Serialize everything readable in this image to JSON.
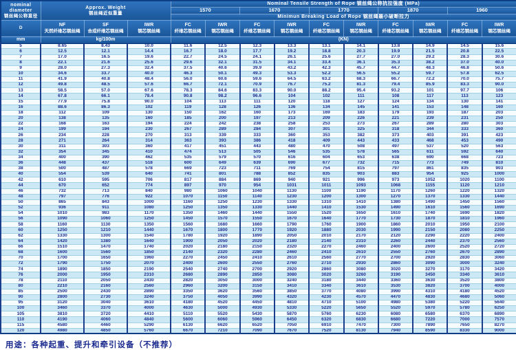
{
  "colors": {
    "header_blue": "#2268b0",
    "grid_navy": "#1b3e8c",
    "row_stripe": "#cde8f5",
    "text_navy": "#1b2b8f"
  },
  "table": {
    "corner": {
      "en": "nominal diameter",
      "zh": "钢丝绳公称直径"
    },
    "weight_header": {
      "en": "Approx. Weight",
      "zh": "钢丝绳近似重量"
    },
    "tensile_title": "Nominal  Tensile  Strength  of  Rope  钢丝绳公称抗拉强度  (MPa)",
    "strengths": [
      "1570",
      "1670",
      "1770",
      "1870",
      "1960"
    ],
    "breaking_title": "Minimun  Breaking  Load  of  Rope  钢丝绳最小破断拉力",
    "col_d": "D",
    "weight_cols": [
      {
        "code": "NF",
        "zh": "天然纤维芯钢丝绳"
      },
      {
        "code": "SF",
        "zh": "合成纤维芯钢丝绳"
      },
      {
        "code": "IWR",
        "zh": "钢芯钢丝绳"
      }
    ],
    "load_cols": [
      {
        "code": "FC",
        "zh": "纤维芯钢丝绳"
      },
      {
        "code": "IWR",
        "zh": "钢芯钢丝绳"
      }
    ],
    "units": {
      "d": "mm",
      "weight": "kg/100m",
      "load": "(KN)"
    },
    "rows": [
      [
        "5",
        "8.65",
        "8.43",
        "10.0",
        "11.6",
        "12.5",
        "12.3",
        "13.3",
        "13.1",
        "14.1",
        "13.8",
        "14.9",
        "14.5",
        "15.6"
      ],
      [
        "6",
        "12.5",
        "12.1",
        "14.4",
        "16.7",
        "18.0",
        "17.7",
        "19.2",
        "18.8",
        "20.3",
        "19.9",
        "21.5",
        "20.8",
        "22.5"
      ],
      [
        "7",
        "17.0",
        "16.5",
        "19.6",
        "22.7",
        "24.5",
        "24.1",
        "26.1",
        "25.6",
        "27.7",
        "27.0",
        "29.2",
        "28.3",
        "30.6"
      ],
      [
        "8",
        "22.1",
        "21.6",
        "25.6",
        "29.6",
        "32.1",
        "31.5",
        "34.1",
        "33.4",
        "36.1",
        "35.3",
        "38.2",
        "37.0",
        "40.0"
      ],
      [
        "9",
        "28.0",
        "27.3",
        "32.4",
        "37.5",
        "40.6",
        "39.9",
        "43.2",
        "42.3",
        "45.7",
        "44.7",
        "48.3",
        "46.8",
        "50.6"
      ],
      [
        "10",
        "34.6",
        "33.7",
        "40.0",
        "46.3",
        "50.1",
        "49.3",
        "53.3",
        "52.2",
        "56.5",
        "55.2",
        "59.7",
        "57.8",
        "62.5"
      ],
      [
        "11",
        "41.9",
        "40.8",
        "48.4",
        "56.0",
        "60.6",
        "59.6",
        "64.5",
        "63.2",
        "68.3",
        "66.7",
        "72.2",
        "70.0",
        "75.7"
      ],
      [
        "12",
        "49.8",
        "48.5",
        "57.6",
        "66.7",
        "72.1",
        "70.9",
        "76.7",
        "75.2",
        "81.3",
        "79.4",
        "85.9",
        "83.3",
        "90.0"
      ],
      [
        "13",
        "58.5",
        "57.0",
        "67.6",
        "78.3",
        "84.6",
        "83.3",
        "90.0",
        "88.2",
        "95.4",
        "93.2",
        "101",
        "97.7",
        "106"
      ],
      [
        "14",
        "67.8",
        "66.1",
        "78.4",
        "90.8",
        "98.2",
        "96.6",
        "104",
        "102",
        "111",
        "108",
        "117",
        "113",
        "123"
      ],
      [
        "15",
        "77.9",
        "75.8",
        "90.0",
        "104",
        "113",
        "111",
        "120",
        "118",
        "127",
        "124",
        "134",
        "130",
        "141"
      ],
      [
        "16",
        "88.6",
        "86.3",
        "102",
        "119",
        "128",
        "126",
        "136",
        "134",
        "145",
        "141",
        "153",
        "148",
        "160"
      ],
      [
        "18",
        "112",
        "109",
        "130",
        "150",
        "162",
        "160",
        "173",
        "169",
        "183",
        "179",
        "193",
        "187",
        "203"
      ],
      [
        "20",
        "138",
        "135",
        "160",
        "185",
        "200",
        "197",
        "213",
        "209",
        "226",
        "221",
        "239",
        "231",
        "250"
      ],
      [
        "22",
        "168",
        "163",
        "194",
        "224",
        "242",
        "238",
        "258",
        "253",
        "273",
        "267",
        "289",
        "280",
        "303"
      ],
      [
        "24",
        "199",
        "194",
        "230",
        "267",
        "289",
        "284",
        "307",
        "301",
        "325",
        "318",
        "344",
        "333",
        "360"
      ],
      [
        "26",
        "234",
        "228",
        "270",
        "313",
        "339",
        "333",
        "360",
        "353",
        "382",
        "373",
        "403",
        "391",
        "423"
      ],
      [
        "28",
        "271",
        "264",
        "314",
        "363",
        "393",
        "386",
        "418",
        "409",
        "443",
        "433",
        "468",
        "453",
        "490"
      ],
      [
        "30",
        "311",
        "303",
        "360",
        "417",
        "451",
        "443",
        "480",
        "470",
        "508",
        "497",
        "537",
        "520",
        "563"
      ],
      [
        "32",
        "354",
        "345",
        "410",
        "474",
        "513",
        "505",
        "546",
        "535",
        "578",
        "565",
        "611",
        "592",
        "640"
      ],
      [
        "34",
        "400",
        "390",
        "462",
        "535",
        "579",
        "570",
        "616",
        "604",
        "653",
        "638",
        "690",
        "668",
        "723"
      ],
      [
        "36",
        "448",
        "437",
        "518",
        "600",
        "649",
        "639",
        "690",
        "677",
        "732",
        "715",
        "773",
        "749",
        "810"
      ],
      [
        "38",
        "500",
        "487",
        "578",
        "669",
        "723",
        "711",
        "769",
        "754",
        "815",
        "797",
        "861",
        "835",
        "903"
      ],
      [
        "40",
        "554",
        "539",
        "640",
        "741",
        "801",
        "788",
        "852",
        "835",
        "903",
        "883",
        "954",
        "925",
        "1000"
      ],
      [
        "42",
        "610",
        "595",
        "706",
        "817",
        "884",
        "869",
        "940",
        "921",
        "996",
        "973",
        "1052",
        "1020",
        "1100"
      ],
      [
        "44",
        "670",
        "652",
        "774",
        "897",
        "970",
        "954",
        "1031",
        "1011",
        "1093",
        "1068",
        "1155",
        "1120",
        "1210"
      ],
      [
        "46",
        "732",
        "713",
        "840",
        "980",
        "1060",
        "1040",
        "1130",
        "1100",
        "1190",
        "1170",
        "1260",
        "1220",
        "1320"
      ],
      [
        "48",
        "797",
        "776",
        "922",
        "1070",
        "1150",
        "1140",
        "1230",
        "1200",
        "1300",
        "1270",
        "1370",
        "1330",
        "1440"
      ],
      [
        "50",
        "865",
        "843",
        "1000",
        "1160",
        "1250",
        "1230",
        "1330",
        "1310",
        "1410",
        "1380",
        "1490",
        "1450",
        "1560"
      ],
      [
        "52",
        "936",
        "911",
        "1080",
        "1250",
        "1350",
        "1330",
        "1440",
        "1410",
        "1530",
        "1490",
        "1610",
        "1560",
        "1690"
      ],
      [
        "54",
        "1010",
        "983",
        "1170",
        "1350",
        "1460",
        "1440",
        "1550",
        "1520",
        "1650",
        "1610",
        "1740",
        "1690",
        "1820"
      ],
      [
        "56",
        "1090",
        "1060",
        "1250",
        "1450",
        "1570",
        "1550",
        "1670",
        "1640",
        "1770",
        "1730",
        "1870",
        "1810",
        "1960"
      ],
      [
        "58",
        "1160",
        "1130",
        "1350",
        "1560",
        "1680",
        "1660",
        "1790",
        "1760",
        "1900",
        "1860",
        "2010",
        "1950",
        "2100"
      ],
      [
        "60",
        "1250",
        "1210",
        "1440",
        "1670",
        "1800",
        "1770",
        "1920",
        "1880",
        "2030",
        "1990",
        "2150",
        "2080",
        "2250"
      ],
      [
        "62",
        "1330",
        "1300",
        "1540",
        "1780",
        "1920",
        "1890",
        "2050",
        "2010",
        "2170",
        "2120",
        "2290",
        "2220",
        "2400"
      ],
      [
        "64",
        "1420",
        "1380",
        "1640",
        "1900",
        "2050",
        "2020",
        "2180",
        "2140",
        "2310",
        "2260",
        "2440",
        "2370",
        "2560"
      ],
      [
        "66",
        "1510",
        "1470",
        "1740",
        "2020",
        "2180",
        "2150",
        "2320",
        "2270",
        "2460",
        "2400",
        "2600",
        "2520",
        "2720"
      ],
      [
        "68",
        "1600",
        "1560",
        "1850",
        "2140",
        "2320",
        "2280",
        "2460",
        "2410",
        "2610",
        "2550",
        "2760",
        "2670",
        "2890"
      ],
      [
        "70",
        "1700",
        "1650",
        "1960",
        "2270",
        "2450",
        "2410",
        "2610",
        "2560",
        "2770",
        "2700",
        "2920",
        "2830",
        "3060"
      ],
      [
        "72",
        "1790",
        "1750",
        "2070",
        "2400",
        "2600",
        "2550",
        "2760",
        "2710",
        "2930",
        "2860",
        "3090",
        "3000",
        "3240"
      ],
      [
        "74",
        "1890",
        "1850",
        "2190",
        "2540",
        "2740",
        "2700",
        "2920",
        "2860",
        "3080",
        "3020",
        "3270",
        "3170",
        "3420"
      ],
      [
        "76",
        "2000",
        "1950",
        "2310",
        "2680",
        "2890",
        "2850",
        "3080",
        "3020",
        "3260",
        "3190",
        "3450",
        "3340",
        "3610"
      ],
      [
        "78",
        "2110",
        "2050",
        "2430",
        "2820",
        "3050",
        "3000",
        "3240",
        "3180",
        "3440",
        "3360",
        "3630",
        "3520",
        "3800"
      ],
      [
        "80",
        "2210",
        "2160",
        "2560",
        "2960",
        "3200",
        "3150",
        "3410",
        "3340",
        "3610",
        "3530",
        "3820",
        "3700",
        "4000"
      ],
      [
        "85",
        "2500",
        "2430",
        "2890",
        "3350",
        "3620",
        "3560",
        "3850",
        "3770",
        "4080",
        "3990",
        "4310",
        "4180",
        "4520"
      ],
      [
        "90",
        "2800",
        "2730",
        "3240",
        "3750",
        "4050",
        "3990",
        "4320",
        "4230",
        "4570",
        "4470",
        "4830",
        "4680",
        "5060"
      ],
      [
        "95",
        "3120",
        "3040",
        "3610",
        "4180",
        "4520",
        "4450",
        "4810",
        "4710",
        "5100",
        "4980",
        "5380",
        "5220",
        "5640"
      ],
      [
        "100",
        "3460",
        "3370",
        "4000",
        "4630",
        "5000",
        "4930",
        "5330",
        "5220",
        "5650",
        "5520",
        "5970",
        "5780",
        "6250"
      ],
      [
        "105",
        "3810",
        "3720",
        "4410",
        "5110",
        "5520",
        "5430",
        "5870",
        "5760",
        "6230",
        "6080",
        "6580",
        "6370",
        "6890"
      ],
      [
        "110",
        "4190",
        "4060",
        "4840",
        "5600",
        "6060",
        "5960",
        "6450",
        "6320",
        "6830",
        "6680",
        "7220",
        "7000",
        "7570"
      ],
      [
        "115",
        "4580",
        "4460",
        "5290",
        "6130",
        "6620",
        "6520",
        "7050",
        "6910",
        "7470",
        "7300",
        "7890",
        "7650",
        "8270"
      ],
      [
        "120",
        "4980",
        "4850",
        "5760",
        "6670",
        "7210",
        "7090",
        "7670",
        "7520",
        "8130",
        "7940",
        "8590",
        "8330",
        "9000"
      ]
    ]
  },
  "footer": {
    "usage": "用途：各种起重、提升和牵引设备（不推荐）"
  }
}
